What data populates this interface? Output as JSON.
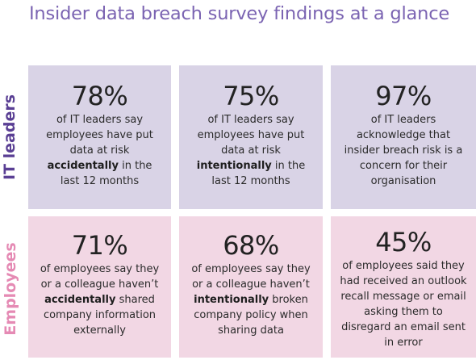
{
  "title": "Insider data breach survey findings at a glance",
  "rows": {
    "it": {
      "label": "IT leaders",
      "cards": [
        {
          "stat": "78%",
          "pre": "of IT leaders say employees have put data at risk",
          "bold": "accidentally",
          "post": "in the last 12 months"
        },
        {
          "stat": "75%",
          "pre": "of IT leaders say employees have put data at risk",
          "bold": "intentionally",
          "post": "in the last 12 months"
        },
        {
          "stat": "97%",
          "pre": "of IT leaders acknowledge that insider breach risk is a concern for their organisation",
          "bold": "",
          "post": ""
        }
      ]
    },
    "employees": {
      "label": "Employees",
      "cards": [
        {
          "stat": "71%",
          "pre": "of employees say they or a colleague haven’t",
          "bold": "accidentally",
          "post": "shared company information externally"
        },
        {
          "stat": "68%",
          "pre": "of employees say they or a colleague haven’t",
          "bold": "intentionally",
          "post": "broken company policy when sharing data"
        },
        {
          "stat": "45%",
          "pre": "of employees said they had received an outlook recall message or email asking them to disregard an email sent in error",
          "bold": "",
          "post": ""
        }
      ]
    }
  },
  "colors": {
    "title": "#7b64b2",
    "it_label": "#5a3f94",
    "employees_label": "#e58ab4",
    "it_card_bg": "#d9d3e6",
    "employees_card_bg": "#f2d7e4"
  }
}
